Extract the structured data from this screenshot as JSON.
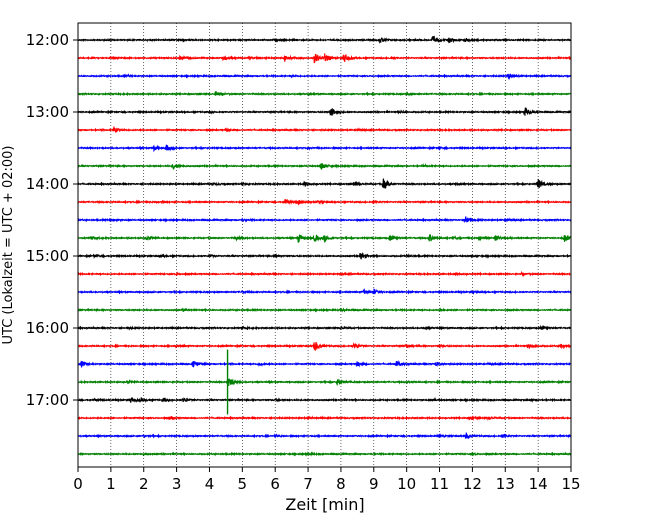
{
  "chart_data": {
    "type": "line",
    "title": "",
    "xlabel": "Zeit  [min]",
    "ylabel": "UTC (Lokalzeit = UTC + 02:00)",
    "xlim": [
      0,
      15
    ],
    "x_ticks": [
      "0",
      "1",
      "2",
      "3",
      "4",
      "5",
      "6",
      "7",
      "8",
      "9",
      "10",
      "11",
      "12",
      "13",
      "14",
      "15"
    ],
    "y_ticks": [
      "12:00",
      "13:00",
      "14:00",
      "15:00",
      "16:00",
      "17:00"
    ],
    "trace_interval_minutes": 15,
    "grid": "vertical dotted at each minute",
    "color_cycle": [
      "#000000",
      "#ff0000",
      "#0000ff",
      "#008000"
    ],
    "series": [
      {
        "start": "12:00",
        "events": [
          [
            9.2,
            0.45
          ],
          [
            10.8,
            0.6
          ],
          [
            11.3,
            0.45
          ],
          [
            11.8,
            0.3
          ],
          [
            3.1,
            0.15
          ],
          [
            6.0,
            0.1
          ]
        ]
      },
      {
        "start": "12:15",
        "events": [
          [
            7.2,
            0.9
          ],
          [
            7.5,
            0.7
          ],
          [
            8.1,
            0.8
          ],
          [
            6.3,
            0.6
          ],
          [
            4.4,
            0.4
          ],
          [
            3.1,
            0.25
          ],
          [
            1.0,
            0.12
          ],
          [
            5.2,
            0.2
          ],
          [
            9.5,
            0.15
          ]
        ]
      },
      {
        "start": "12:30",
        "events": [
          [
            13.1,
            0.5
          ],
          [
            1.4,
            0.15
          ],
          [
            6.5,
            0.1
          ]
        ]
      },
      {
        "start": "12:45",
        "events": [
          [
            4.2,
            0.45
          ],
          [
            10.0,
            0.12
          ],
          [
            7.0,
            0.1
          ]
        ]
      },
      {
        "start": "13:00",
        "events": [
          [
            7.7,
            0.8
          ],
          [
            13.6,
            0.8
          ],
          [
            4.0,
            0.15
          ],
          [
            9.8,
            0.12
          ]
        ]
      },
      {
        "start": "13:15",
        "events": [
          [
            1.1,
            0.5
          ],
          [
            4.5,
            0.15
          ],
          [
            8.5,
            0.1
          ]
        ]
      },
      {
        "start": "13:30",
        "events": [
          [
            2.3,
            0.45
          ],
          [
            2.7,
            0.45
          ],
          [
            7.0,
            0.1
          ],
          [
            11.0,
            0.1
          ]
        ]
      },
      {
        "start": "13:45",
        "events": [
          [
            2.9,
            0.55
          ],
          [
            7.4,
            0.6
          ],
          [
            10.5,
            0.1
          ]
        ]
      },
      {
        "start": "14:00",
        "events": [
          [
            9.3,
            0.9
          ],
          [
            8.4,
            0.5
          ],
          [
            14.0,
            0.8
          ],
          [
            6.9,
            0.4
          ],
          [
            4.1,
            0.2
          ],
          [
            5.0,
            0.15
          ],
          [
            11.5,
            0.15
          ]
        ]
      },
      {
        "start": "14:15",
        "events": [
          [
            6.3,
            0.5
          ],
          [
            6.7,
            0.4
          ],
          [
            7.3,
            0.2
          ],
          [
            9.0,
            0.15
          ],
          [
            2.4,
            0.12
          ]
        ]
      },
      {
        "start": "14:30",
        "events": [
          [
            11.8,
            0.7
          ],
          [
            1.0,
            0.25
          ],
          [
            13.0,
            0.15
          ],
          [
            5.0,
            0.12
          ]
        ]
      },
      {
        "start": "14:45",
        "events": [
          [
            6.7,
            0.75
          ],
          [
            7.2,
            0.6
          ],
          [
            7.5,
            0.5
          ],
          [
            9.5,
            0.55
          ],
          [
            10.7,
            0.6
          ],
          [
            12.7,
            0.5
          ],
          [
            14.8,
            0.6
          ],
          [
            0.4,
            0.3
          ],
          [
            2.1,
            0.25
          ],
          [
            4.8,
            0.3
          ],
          [
            11.4,
            0.2
          ],
          [
            12.2,
            0.35
          ]
        ]
      },
      {
        "start": "15:00",
        "events": [
          [
            8.6,
            0.75
          ],
          [
            0.5,
            0.25
          ],
          [
            2.5,
            0.2
          ],
          [
            4.0,
            0.15
          ],
          [
            6.0,
            0.15
          ],
          [
            10.0,
            0.15
          ],
          [
            12.0,
            0.12
          ]
        ]
      },
      {
        "start": "15:15",
        "events": [
          [
            11.5,
            0.25
          ],
          [
            13.5,
            0.2
          ],
          [
            3.0,
            0.1
          ],
          [
            8.0,
            0.1
          ]
        ]
      },
      {
        "start": "15:30",
        "events": [
          [
            8.7,
            0.3
          ],
          [
            9.0,
            0.3
          ],
          [
            5.0,
            0.12
          ],
          [
            12.0,
            0.1
          ]
        ]
      },
      {
        "start": "15:45",
        "events": [
          [
            3.2,
            0.2
          ],
          [
            8.0,
            0.15
          ],
          [
            11.0,
            0.1
          ]
        ]
      },
      {
        "start": "16:00",
        "events": [
          [
            14.1,
            0.4
          ],
          [
            5.0,
            0.15
          ],
          [
            8.0,
            0.2
          ],
          [
            10.5,
            0.15
          ],
          [
            1.5,
            0.1
          ]
        ]
      },
      {
        "start": "16:15",
        "events": [
          [
            7.2,
            0.9
          ],
          [
            8.4,
            0.4
          ],
          [
            10.0,
            0.3
          ],
          [
            13.7,
            0.5
          ],
          [
            14.7,
            0.35
          ],
          [
            3.0,
            0.2
          ],
          [
            11.0,
            0.15
          ]
        ]
      },
      {
        "start": "16:30",
        "events": [
          [
            0.1,
            0.5
          ],
          [
            3.5,
            0.55
          ],
          [
            8.5,
            0.4
          ],
          [
            9.7,
            0.45
          ],
          [
            10.9,
            0.35
          ],
          [
            5.5,
            0.2
          ],
          [
            12.5,
            0.15
          ]
        ]
      },
      {
        "start": "16:45",
        "events": [
          [
            4.6,
            0.8
          ],
          [
            7.9,
            0.6
          ],
          [
            1.5,
            0.15
          ],
          [
            10.0,
            0.12
          ]
        ]
      },
      {
        "start": "17:00",
        "events": [
          [
            1.6,
            0.5
          ],
          [
            1.9,
            0.3
          ],
          [
            2.6,
            0.3
          ],
          [
            3.2,
            0.3
          ],
          [
            0.5,
            0.15
          ],
          [
            6.0,
            0.1
          ],
          [
            10.8,
            0.1
          ],
          [
            13.8,
            0.1
          ]
        ]
      },
      {
        "start": "17:15",
        "events": [
          [
            11.9,
            0.3
          ],
          [
            12.5,
            0.2
          ],
          [
            2.8,
            0.2
          ],
          [
            7.0,
            0.1
          ]
        ]
      },
      {
        "start": "17:30",
        "events": [
          [
            11.8,
            0.45
          ],
          [
            12.9,
            0.3
          ],
          [
            11.0,
            0.2
          ],
          [
            2.0,
            0.1
          ],
          [
            6.0,
            0.1
          ]
        ]
      },
      {
        "start": "17:45",
        "events": [
          [
            2.0,
            0.12
          ],
          [
            7.0,
            0.1
          ],
          [
            12.0,
            0.1
          ]
        ]
      }
    ],
    "spike": {
      "start": "16:45",
      "minute": 4.55,
      "amplitude": 2.7
    }
  }
}
